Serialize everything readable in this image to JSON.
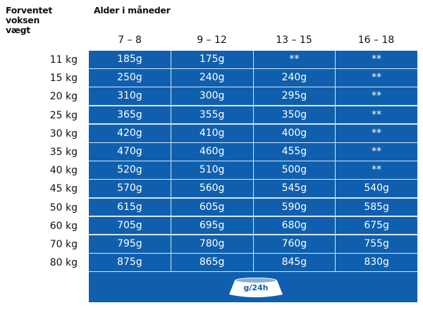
{
  "header": {
    "weight_label": "Forventet voksen vægt",
    "age_label": "Alder i måneder"
  },
  "columns": [
    "7 – 8",
    "9 – 12",
    "13 – 15",
    "16 – 18"
  ],
  "rows": [
    {
      "weight": "11 kg",
      "values": [
        "185g",
        "175g",
        "**",
        "**"
      ]
    },
    {
      "weight": "15 kg",
      "values": [
        "250g",
        "240g",
        "240g",
        "**"
      ]
    },
    {
      "weight": "20 kg",
      "values": [
        "310g",
        "300g",
        "295g",
        "**"
      ]
    },
    {
      "weight": "25 kg",
      "values": [
        "365g",
        "355g",
        "350g",
        "**"
      ]
    },
    {
      "weight": "30 kg",
      "values": [
        "420g",
        "410g",
        "400g",
        "**"
      ]
    },
    {
      "weight": "35 kg",
      "values": [
        "470g",
        "460g",
        "455g",
        "**"
      ]
    },
    {
      "weight": "40 kg",
      "values": [
        "520g",
        "510g",
        "500g",
        "**"
      ]
    },
    {
      "weight": "45 kg",
      "values": [
        "570g",
        "560g",
        "545g",
        "540g"
      ]
    },
    {
      "weight": "50 kg",
      "values": [
        "615g",
        "605g",
        "590g",
        "585g"
      ]
    },
    {
      "weight": "60 kg",
      "values": [
        "705g",
        "695g",
        "680g",
        "675g"
      ]
    },
    {
      "weight": "70 kg",
      "values": [
        "795g",
        "780g",
        "760g",
        "755g"
      ]
    },
    {
      "weight": "80 kg",
      "values": [
        "875g",
        "865g",
        "845g",
        "830g"
      ]
    }
  ],
  "footer": {
    "unit": "g/24h",
    "icon": "food-bowl-icon"
  },
  "colors": {
    "cell": "#0f5fae",
    "grid": "#d6e6f4"
  }
}
